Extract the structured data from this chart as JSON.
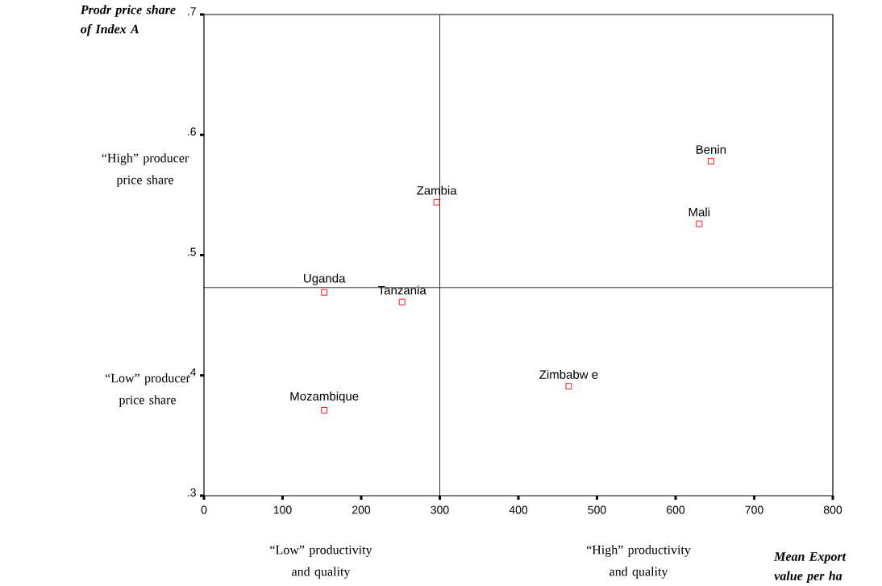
{
  "chart_data": {
    "type": "scatter",
    "xlabel": "Mean Export value per ha",
    "ylabel": "Prodr price share of Index A",
    "x": [
      645,
      630,
      296,
      153,
      252,
      464,
      153
    ],
    "values": [
      0.578,
      0.526,
      0.544,
      0.469,
      0.461,
      0.391,
      0.371
    ],
    "color": "#ff0000",
    "marker": "square",
    "xlim": [
      0,
      800
    ],
    "ylim": [
      0.3,
      0.7
    ],
    "xticks": [
      0,
      100,
      200,
      300,
      400,
      500,
      600,
      700,
      800
    ],
    "yticks": [
      {
        "value": 0.3,
        "label": ".3"
      },
      {
        "value": 0.4,
        "label": ".4"
      },
      {
        "value": 0.5,
        "label": ".5"
      },
      {
        "value": 0.6,
        "label": ".6"
      },
      {
        "value": 0.7,
        "label": ".7"
      }
    ],
    "ref_lines": [
      {
        "axis": "x",
        "value": 300
      },
      {
        "axis": "y",
        "value": 0.473
      }
    ],
    "grid": false,
    "annotations": [
      {
        "text": "Benin",
        "x": 645,
        "y": 0.578
      },
      {
        "text": "Mali",
        "x": 630,
        "y": 0.526
      },
      {
        "text": "Zambia",
        "x": 296,
        "y": 0.544
      },
      {
        "text": "Uganda",
        "x": 153,
        "y": 0.469
      },
      {
        "text": "Tanzania",
        "x": 252,
        "y": 0.461
      },
      {
        "text": "Zimbabw e",
        "x": 464,
        "y": 0.391
      },
      {
        "text": "Mozambique",
        "x": 153,
        "y": 0.371
      },
      "“High” producer price share",
      "“Low” producer price share",
      "“Low” productivity and quality",
      "“High” productivity and quality"
    ]
  }
}
